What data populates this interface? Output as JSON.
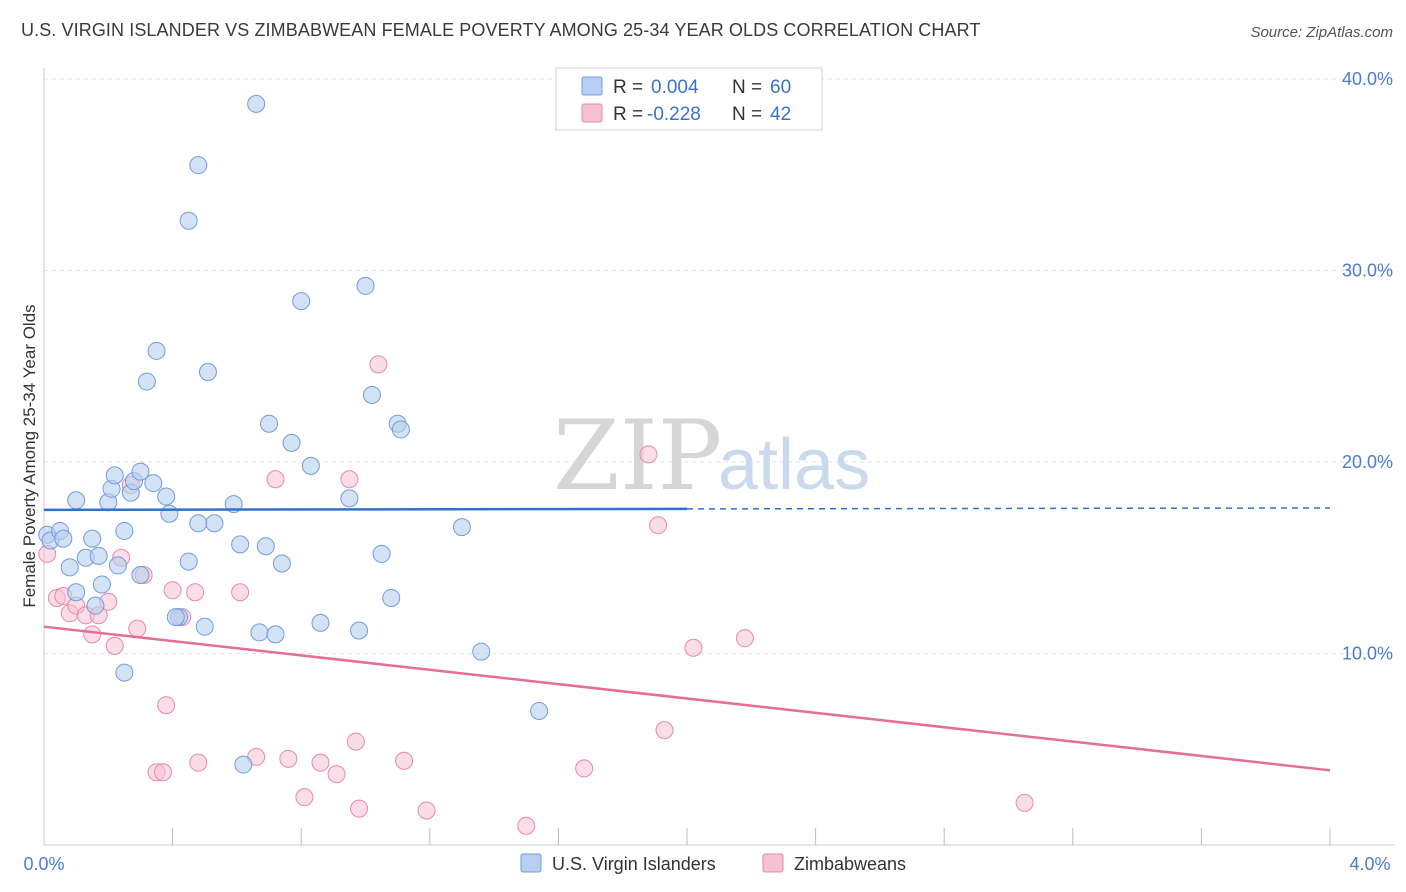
{
  "header": {
    "title": "U.S. VIRGIN ISLANDER VS ZIMBABWEAN FEMALE POVERTY AMONG 25-34 YEAR OLDS CORRELATION CHART",
    "source": "Source: ZipAtlas.com"
  },
  "watermark": {
    "zip": "ZIP",
    "atlas": "atlas"
  },
  "legend": {
    "r_label": "R =",
    "n_label": "N =",
    "rows": [
      {
        "r": "0.004",
        "n": "60"
      },
      {
        "r": "-0.228",
        "n": "42"
      }
    ]
  },
  "colors": {
    "blue_fill": "#b7cff0",
    "blue_stroke": "#6f9ddc",
    "blue_line": "#2f72cc",
    "pink_fill": "#f6c1d1",
    "pink_stroke": "#e88aa8",
    "pink_line": "#e56d97",
    "grid": "#e2e2e2",
    "tick_label": "#4a7dc9"
  },
  "chart_data": {
    "type": "scatter",
    "title": "U.S. VIRGIN ISLANDER VS ZIMBABWEAN FEMALE POVERTY AMONG 25-34 YEAR OLDS CORRELATION CHART",
    "xlabel": "",
    "ylabel": "Female Poverty Among 25-34 Year Olds",
    "xlim": [
      0.0,
      4.0
    ],
    "ylim": [
      0.0,
      40.0
    ],
    "x_tick_labels": [
      "0.0%",
      "4.0%"
    ],
    "y_ticks": [
      10,
      20,
      30,
      40
    ],
    "y_tick_labels": [
      "10.0%",
      "20.0%",
      "30.0%",
      "40.0%"
    ],
    "grid": true,
    "legend_position": "top-center",
    "series": [
      {
        "name": "U.S. Virgin Islanders",
        "color": "#6f9ddc",
        "r": 0.004,
        "n": 60,
        "trend": {
          "x": [
            0.0,
            4.0
          ],
          "y": [
            17.5,
            17.6
          ],
          "solid_until_x": 2.0
        },
        "points": [
          [
            0.01,
            16.2
          ],
          [
            0.02,
            15.9
          ],
          [
            0.05,
            16.4
          ],
          [
            0.06,
            16.0
          ],
          [
            0.08,
            14.5
          ],
          [
            0.1,
            18.0
          ],
          [
            0.1,
            13.2
          ],
          [
            0.13,
            15.0
          ],
          [
            0.15,
            16.0
          ],
          [
            0.16,
            12.5
          ],
          [
            0.17,
            15.1
          ],
          [
            0.18,
            13.6
          ],
          [
            0.2,
            17.9
          ],
          [
            0.21,
            18.6
          ],
          [
            0.22,
            19.3
          ],
          [
            0.23,
            14.6
          ],
          [
            0.25,
            16.4
          ],
          [
            0.27,
            18.4
          ],
          [
            0.28,
            19.0
          ],
          [
            0.3,
            19.5
          ],
          [
            0.3,
            14.1
          ],
          [
            0.32,
            24.2
          ],
          [
            0.34,
            18.9
          ],
          [
            0.35,
            25.8
          ],
          [
            0.38,
            18.2
          ],
          [
            0.39,
            17.3
          ],
          [
            0.42,
            11.9
          ],
          [
            0.45,
            32.6
          ],
          [
            0.45,
            14.8
          ],
          [
            0.48,
            16.8
          ],
          [
            0.48,
            35.5
          ],
          [
            0.5,
            11.4
          ],
          [
            0.51,
            24.7
          ],
          [
            0.53,
            16.8
          ],
          [
            0.59,
            17.8
          ],
          [
            0.61,
            15.7
          ],
          [
            0.62,
            4.2
          ],
          [
            0.66,
            38.7
          ],
          [
            0.67,
            11.1
          ],
          [
            0.69,
            15.6
          ],
          [
            0.7,
            22.0
          ],
          [
            0.72,
            11.0
          ],
          [
            0.74,
            14.7
          ],
          [
            0.77,
            21.0
          ],
          [
            0.8,
            28.4
          ],
          [
            0.83,
            19.8
          ],
          [
            0.86,
            11.6
          ],
          [
            0.95,
            18.1
          ],
          [
            0.98,
            11.2
          ],
          [
            1.0,
            29.2
          ],
          [
            1.02,
            23.5
          ],
          [
            1.05,
            15.2
          ],
          [
            1.08,
            12.9
          ],
          [
            1.1,
            22.0
          ],
          [
            1.11,
            21.7
          ],
          [
            1.3,
            16.6
          ],
          [
            1.36,
            10.1
          ],
          [
            1.54,
            7.0
          ],
          [
            0.25,
            9.0
          ],
          [
            0.41,
            11.9
          ]
        ]
      },
      {
        "name": "Zimbabweans",
        "color": "#e88aa8",
        "r": -0.228,
        "n": 42,
        "trend": {
          "x": [
            0.0,
            4.0
          ],
          "y": [
            11.4,
            3.9
          ]
        },
        "points": [
          [
            0.01,
            15.2
          ],
          [
            0.04,
            12.9
          ],
          [
            0.06,
            13.0
          ],
          [
            0.08,
            12.1
          ],
          [
            0.1,
            12.5
          ],
          [
            0.13,
            12.0
          ],
          [
            0.15,
            11.0
          ],
          [
            0.17,
            12.0
          ],
          [
            0.2,
            12.7
          ],
          [
            0.22,
            10.4
          ],
          [
            0.24,
            15.0
          ],
          [
            0.27,
            18.8
          ],
          [
            0.29,
            11.3
          ],
          [
            0.31,
            14.1
          ],
          [
            0.35,
            3.8
          ],
          [
            0.37,
            3.8
          ],
          [
            0.38,
            7.3
          ],
          [
            0.4,
            13.3
          ],
          [
            0.43,
            11.9
          ],
          [
            0.47,
            13.2
          ],
          [
            0.48,
            4.3
          ],
          [
            0.61,
            13.2
          ],
          [
            0.66,
            4.6
          ],
          [
            0.72,
            19.1
          ],
          [
            0.76,
            4.5
          ],
          [
            0.81,
            2.5
          ],
          [
            0.86,
            4.3
          ],
          [
            0.91,
            3.7
          ],
          [
            0.95,
            19.1
          ],
          [
            0.97,
            5.4
          ],
          [
            0.98,
            1.9
          ],
          [
            1.04,
            25.1
          ],
          [
            1.12,
            4.4
          ],
          [
            1.19,
            1.8
          ],
          [
            1.5,
            1.0
          ],
          [
            1.68,
            4.0
          ],
          [
            1.88,
            20.4
          ],
          [
            1.91,
            16.7
          ],
          [
            1.93,
            6.0
          ],
          [
            2.02,
            10.3
          ],
          [
            2.18,
            10.8
          ],
          [
            3.05,
            2.2
          ]
        ]
      }
    ]
  },
  "bottom_legend": [
    "U.S. Virgin Islanders",
    "Zimbabweans"
  ]
}
